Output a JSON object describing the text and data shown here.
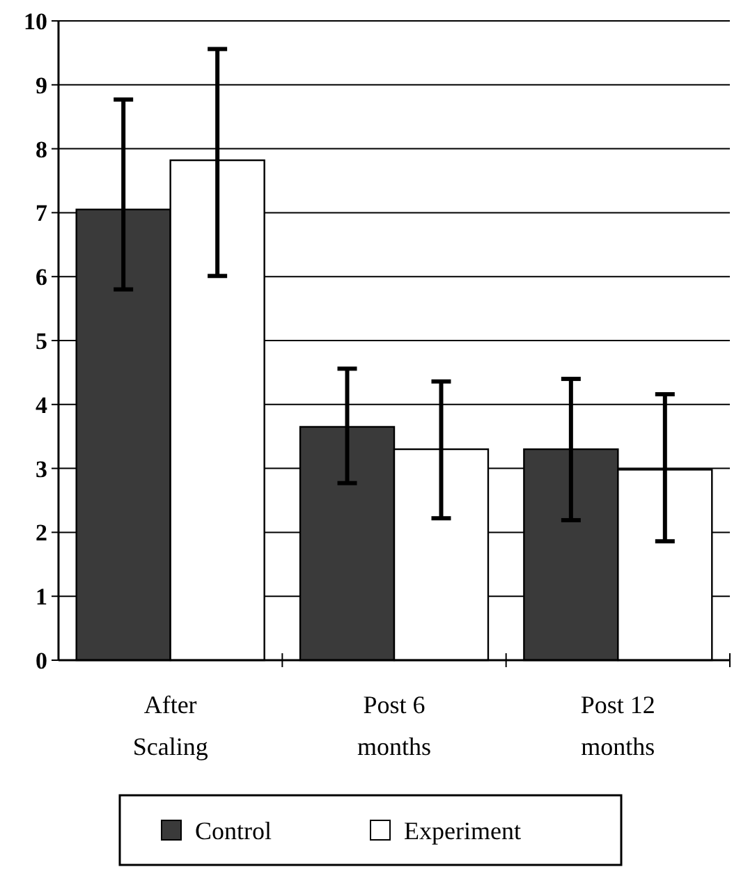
{
  "chart_data": {
    "type": "bar",
    "categories": [
      "After Scaling",
      "Post 6 months",
      "Post 12 months"
    ],
    "series": [
      {
        "name": "Control",
        "color": "#3a3a3a",
        "values": [
          7.05,
          3.65,
          3.3
        ],
        "errors": [
          [
            5.8,
            8.77
          ],
          [
            2.77,
            4.56
          ],
          [
            2.19,
            4.4
          ]
        ]
      },
      {
        "name": "Experiment",
        "color": "#ffffff",
        "values": [
          7.82,
          3.3,
          2.98
        ],
        "errors": [
          [
            6.01,
            9.56
          ],
          [
            2.22,
            4.36
          ],
          [
            1.86,
            4.16
          ]
        ]
      }
    ],
    "ylim": [
      0,
      10
    ],
    "yticks": [
      0,
      1,
      2,
      3,
      4,
      5,
      6,
      7,
      8,
      9,
      10
    ],
    "grid": "y",
    "legend": "bottom"
  }
}
